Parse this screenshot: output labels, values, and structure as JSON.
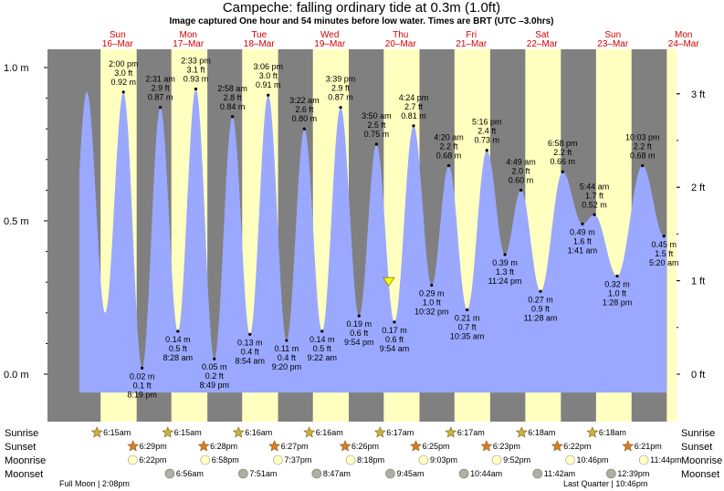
{
  "title": "Campeche: falling  ordinary tide at 0.3m (1.0ft)",
  "subtitle": "Image captured One hour and 54 minutes before low water. Times are BRT (UTC –3.0hrs)",
  "colors": {
    "day": "#ffffc0",
    "night": "#808080",
    "water": "#9aa8ff",
    "sunrise": "#c8b43c",
    "sunset": "#e07a20",
    "moon": "#ffffc8",
    "moonset": "#b0b0a0",
    "day_label": "#d40000"
  },
  "days": [
    {
      "dow": "Sun",
      "date": "16–Mar"
    },
    {
      "dow": "Mon",
      "date": "17–Mar"
    },
    {
      "dow": "Tue",
      "date": "18–Mar"
    },
    {
      "dow": "Wed",
      "date": "19–Mar"
    },
    {
      "dow": "Thu",
      "date": "20–Mar"
    },
    {
      "dow": "Fri",
      "date": "21–Mar"
    },
    {
      "dow": "Sat",
      "date": "22–Mar"
    },
    {
      "dow": "Sun",
      "date": "23–Mar"
    },
    {
      "dow": "Mon",
      "date": "24–Mar"
    }
  ],
  "chart_data": {
    "type": "area",
    "title": "Campeche: falling  ordinary tide at 0.3m (1.0ft)",
    "x_unit": "hours since Sun 16-Mar 00:00 BRT",
    "ylim_m": [
      -0.13,
      1.07
    ],
    "y_ticks_left": [
      "0.0 m",
      "0.5 m",
      "1.0 m"
    ],
    "y_ticks_left_values": [
      0.0,
      0.5,
      1.0
    ],
    "y_ticks_right": [
      "0 ft",
      "1 ft",
      "2 ft",
      "3 ft"
    ],
    "y_ticks_right_values_m": [
      0.0,
      0.3048,
      0.6096,
      0.9144
    ],
    "current_level_m": 0.3,
    "current_label": "falling  ordinary tide at 0.3m (1.0ft)",
    "extremes": [
      {
        "time": "2:00 pm",
        "ft": "3.0 ft",
        "m": "0.92 m",
        "value": 0.92,
        "type": "high"
      },
      {
        "time": "8:19 pm",
        "ft": "0.1 ft",
        "m": "0.02 m",
        "value": 0.02,
        "type": "low"
      },
      {
        "time": "2:31 am",
        "ft": "2.9 ft",
        "m": "0.87 m",
        "value": 0.87,
        "type": "high"
      },
      {
        "time": "8:28 am",
        "ft": "0.5 ft",
        "m": "0.14 m",
        "value": 0.14,
        "type": "low"
      },
      {
        "time": "2:33 pm",
        "ft": "3.1 ft",
        "m": "0.93 m",
        "value": 0.93,
        "type": "high"
      },
      {
        "time": "8:49 pm",
        "ft": "0.2 ft",
        "m": "0.05 m",
        "value": 0.05,
        "type": "low"
      },
      {
        "time": "2:58 am",
        "ft": "2.8 ft",
        "m": "0.84 m",
        "value": 0.84,
        "type": "high"
      },
      {
        "time": "8:54 am",
        "ft": "0.4 ft",
        "m": "0.13 m",
        "value": 0.13,
        "type": "low"
      },
      {
        "time": "3:06 pm",
        "ft": "3.0 ft",
        "m": "0.91 m",
        "value": 0.91,
        "type": "high"
      },
      {
        "time": "9:20 pm",
        "ft": "0.4 ft",
        "m": "0.11 m",
        "value": 0.11,
        "type": "low"
      },
      {
        "time": "3:22 am",
        "ft": "2.6 ft",
        "m": "0.80 m",
        "value": 0.8,
        "type": "high"
      },
      {
        "time": "9:22 am",
        "ft": "0.5 ft",
        "m": "0.14 m",
        "value": 0.14,
        "type": "low"
      },
      {
        "time": "3:39 pm",
        "ft": "2.9 ft",
        "m": "0.87 m",
        "value": 0.87,
        "type": "high"
      },
      {
        "time": "9:54 pm",
        "ft": "0.6 ft",
        "m": "0.19 m",
        "value": 0.19,
        "type": "low"
      },
      {
        "time": "3:50 am",
        "ft": "2.5 ft",
        "m": "0.75 m",
        "value": 0.75,
        "type": "high"
      },
      {
        "time": "9:54 am",
        "ft": "0.6 ft",
        "m": "0.17 m",
        "value": 0.17,
        "type": "low"
      },
      {
        "time": "4:24 pm",
        "ft": "2.7 ft",
        "m": "0.81 m",
        "value": 0.81,
        "type": "high"
      },
      {
        "time": "10:32 pm",
        "ft": "1.0 ft",
        "m": "0.29 m",
        "value": 0.29,
        "type": "low"
      },
      {
        "time": "4:20 am",
        "ft": "2.2 ft",
        "m": "0.68 m",
        "value": 0.68,
        "type": "high"
      },
      {
        "time": "10:35 am",
        "ft": "0.7 ft",
        "m": "0.21 m",
        "value": 0.21,
        "type": "low"
      },
      {
        "time": "5:16 pm",
        "ft": "2.4 ft",
        "m": "0.73 m",
        "value": 0.73,
        "type": "high"
      },
      {
        "time": "11:24 pm",
        "ft": "1.3 ft",
        "m": "0.39 m",
        "value": 0.39,
        "type": "low"
      },
      {
        "time": "4:49 am",
        "ft": "2.0 ft",
        "m": "0.60 m",
        "value": 0.6,
        "type": "high"
      },
      {
        "time": "11:28 am",
        "ft": "0.9 ft",
        "m": "0.27 m",
        "value": 0.27,
        "type": "low"
      },
      {
        "time": "6:58 pm",
        "ft": "2.2 ft",
        "m": "0.66 m",
        "value": 0.66,
        "type": "high"
      },
      {
        "time": "1:41 am",
        "ft": "1.6 ft",
        "m": "0.49 m",
        "value": 0.49,
        "type": "low"
      },
      {
        "time": "5:44 am",
        "ft": "1.7 ft",
        "m": "0.52 m",
        "value": 0.52,
        "type": "high"
      },
      {
        "time": "1:28 pm",
        "ft": "1.0 ft",
        "m": "0.32 m",
        "value": 0.32,
        "type": "low"
      },
      {
        "time": "10:03 pm",
        "ft": "2.2 ft",
        "m": "0.68 m",
        "value": 0.68,
        "type": "high"
      },
      {
        "time": "5:20 am",
        "ft": "1.5 ft",
        "m": "0.45 m",
        "value": 0.45,
        "type": "low"
      }
    ]
  },
  "rows": {
    "sunrise": "Sunrise",
    "sunset": "Sunset",
    "moonrise": "Moonrise",
    "moonset": "Moonset"
  },
  "sunrise": [
    "6:15am",
    "6:15am",
    "6:16am",
    "6:16am",
    "6:17am",
    "6:17am",
    "6:18am",
    "6:18am"
  ],
  "sunset": [
    "6:29pm",
    "6:28pm",
    "6:27pm",
    "6:26pm",
    "6:25pm",
    "6:23pm",
    "6:22pm",
    "6:21pm"
  ],
  "moonrise": [
    "6:22pm",
    "6:58pm",
    "7:37pm",
    "8:18pm",
    "9:03pm",
    "9:52pm",
    "10:46pm",
    "11:44pm"
  ],
  "moonset": [
    "6:56am",
    "7:51am",
    "8:47am",
    "9:45am",
    "10:44am",
    "11:42am",
    "12:39pm"
  ],
  "moon_phases": [
    {
      "label": "Full Moon",
      "time": "2:08pm"
    },
    {
      "label": "Last Quarter",
      "time": "10:46pm"
    }
  ]
}
